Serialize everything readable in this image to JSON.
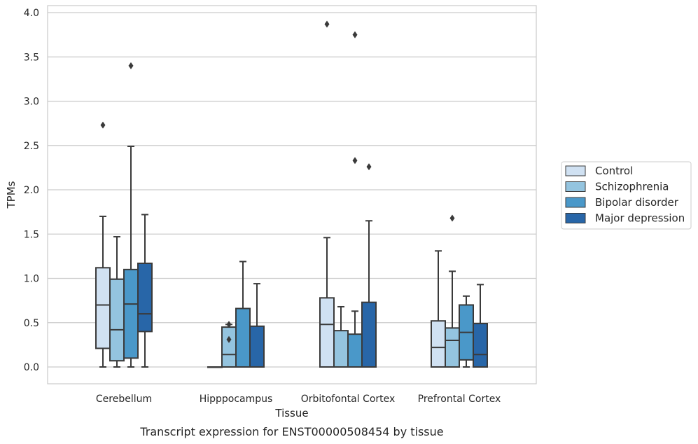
{
  "chart_data": {
    "type": "box",
    "title": "",
    "caption": "Transcript expression for ENST00000508454 by tissue",
    "xlabel": "Tissue",
    "ylabel": "TPMs",
    "ylim": [
      -0.18,
      4.08
    ],
    "yticks": [
      "0.0",
      "0.5",
      "1.0",
      "1.5",
      "2.0",
      "2.5",
      "3.0",
      "3.5",
      "4.0"
    ],
    "grid": "horizontal",
    "legend_position": "right",
    "categories": [
      "Cerebellum",
      "Hipppocampus",
      "Orbitofontal Cortex",
      "Prefrontal Cortex"
    ],
    "series": [
      {
        "name": "Control",
        "color": "#d0e1f2",
        "boxes": [
          {
            "q1": 0.21,
            "median": 0.7,
            "q3": 1.12,
            "whisker_low": 0.0,
            "whisker_high": 1.7,
            "outliers": [
              2.73
            ]
          },
          {
            "q1": 0.0,
            "median": 0.0,
            "q3": 0.0,
            "whisker_low": 0.0,
            "whisker_high": 0.0,
            "outliers": []
          },
          {
            "q1": 0.0,
            "median": 0.48,
            "q3": 0.78,
            "whisker_low": 0.0,
            "whisker_high": 1.46,
            "outliers": [
              3.87
            ]
          },
          {
            "q1": 0.0,
            "median": 0.22,
            "q3": 0.52,
            "whisker_low": 0.0,
            "whisker_high": 1.31,
            "outliers": []
          }
        ]
      },
      {
        "name": "Schizophrenia",
        "color": "#94c4df",
        "boxes": [
          {
            "q1": 0.07,
            "median": 0.42,
            "q3": 0.99,
            "whisker_low": 0.0,
            "whisker_high": 1.47,
            "outliers": []
          },
          {
            "q1": 0.0,
            "median": 0.14,
            "q3": 0.45,
            "whisker_low": 0.0,
            "whisker_high": 0.48,
            "outliers": [
              0.48,
              0.31
            ]
          },
          {
            "q1": 0.0,
            "median": 0.0,
            "q3": 0.41,
            "whisker_low": 0.0,
            "whisker_high": 0.68,
            "outliers": []
          },
          {
            "q1": 0.0,
            "median": 0.3,
            "q3": 0.44,
            "whisker_low": 0.0,
            "whisker_high": 1.08,
            "outliers": [
              1.68
            ]
          }
        ]
      },
      {
        "name": "Bipolar disorder",
        "color": "#4a98c9",
        "boxes": [
          {
            "q1": 0.1,
            "median": 0.71,
            "q3": 1.1,
            "whisker_low": 0.0,
            "whisker_high": 2.49,
            "outliers": [
              3.4
            ]
          },
          {
            "q1": 0.0,
            "median": 0.0,
            "q3": 0.66,
            "whisker_low": 0.0,
            "whisker_high": 1.19,
            "outliers": []
          },
          {
            "q1": 0.0,
            "median": 0.0,
            "q3": 0.37,
            "whisker_low": 0.0,
            "whisker_high": 0.63,
            "outliers": [
              3.75,
              2.33
            ]
          },
          {
            "q1": 0.08,
            "median": 0.39,
            "q3": 0.7,
            "whisker_low": 0.0,
            "whisker_high": 0.8,
            "outliers": []
          }
        ]
      },
      {
        "name": "Major depression",
        "color": "#2866a8",
        "boxes": [
          {
            "q1": 0.4,
            "median": 0.6,
            "q3": 1.17,
            "whisker_low": 0.0,
            "whisker_high": 1.72,
            "outliers": []
          },
          {
            "q1": 0.0,
            "median": 0.0,
            "q3": 0.46,
            "whisker_low": 0.0,
            "whisker_high": 0.94,
            "outliers": []
          },
          {
            "q1": 0.0,
            "median": 0.0,
            "q3": 0.73,
            "whisker_low": 0.0,
            "whisker_high": 1.65,
            "outliers": [
              2.26
            ]
          },
          {
            "q1": 0.0,
            "median": 0.14,
            "q3": 0.49,
            "whisker_low": 0.0,
            "whisker_high": 0.93,
            "outliers": []
          }
        ]
      }
    ]
  }
}
